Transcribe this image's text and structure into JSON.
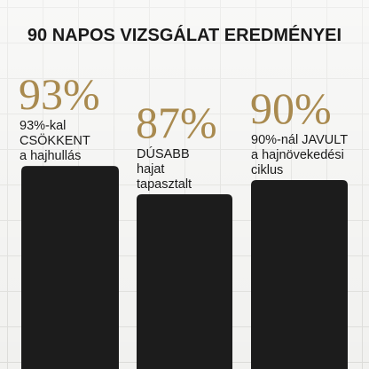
{
  "chart_data": {
    "type": "bar",
    "title": "90 NAPOS VIZSGÁLAT EREDMÉNYEI",
    "categories": [
      [
        "93%-kal",
        "CSÖKKENT",
        "a hajhullás"
      ],
      [
        "DÚSABB",
        "hajat",
        "tapasztalt"
      ],
      [
        "90%-nál JAVULT",
        "a hajnövekedési",
        "ciklus"
      ]
    ],
    "values": [
      93,
      87,
      90
    ],
    "value_labels": [
      "93%",
      "87%",
      "90%"
    ],
    "color": "#1c1c1c",
    "label_color": "#a98a4f",
    "ylim": [
      50,
      118
    ]
  }
}
